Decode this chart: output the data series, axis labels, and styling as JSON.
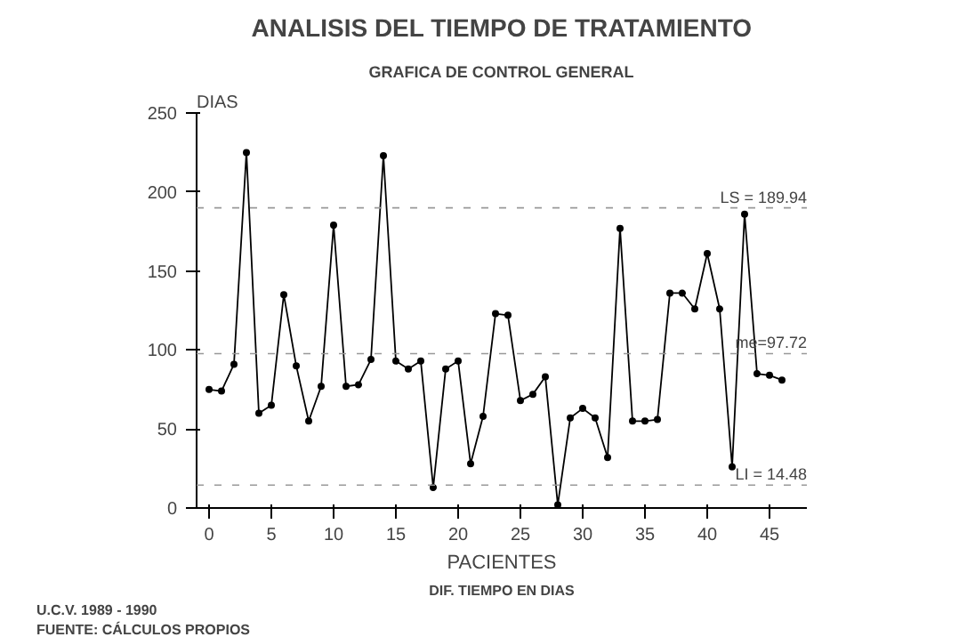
{
  "chart_data": {
    "type": "line",
    "title": "ANALISIS DEL TIEMPO DE TRATAMIENTO",
    "subtitle": "GRAFICA DE CONTROL GENERAL",
    "xlabel": "PACIENTES",
    "ylabel": "DIAS",
    "annotations": [
      "DIF. TIEMPO EN DIAS",
      "U.C.V. 1989 - 1990",
      "FUENTE: CÁLCULOS PROPIOS"
    ],
    "x": [
      0,
      1,
      2,
      3,
      4,
      5,
      6,
      7,
      8,
      9,
      10,
      11,
      12,
      13,
      14,
      15,
      16,
      17,
      18,
      19,
      20,
      21,
      22,
      23,
      24,
      25,
      26,
      27,
      28,
      29,
      30,
      31,
      32,
      33,
      34,
      35,
      36,
      37,
      38,
      39,
      40,
      41,
      42,
      43,
      44,
      45,
      46
    ],
    "series": [
      {
        "color": "#000000",
        "values": [
          75,
          74,
          91,
          225,
          60,
          65,
          135,
          90,
          55,
          77,
          179,
          77,
          78,
          94,
          223,
          93,
          88,
          93,
          13,
          88,
          93,
          28,
          58,
          123,
          122,
          68,
          72,
          83,
          2,
          57,
          63,
          57,
          32,
          177,
          55,
          55,
          56,
          136,
          136,
          126,
          161,
          126,
          26,
          186,
          85,
          84,
          81
        ]
      }
    ],
    "xlim": [
      -1,
      48
    ],
    "ylim": [
      0,
      250
    ],
    "xticks": [
      0,
      5,
      10,
      15,
      20,
      25,
      30,
      35,
      40,
      45
    ],
    "yticks": [
      0,
      50,
      100,
      150,
      200,
      250
    ],
    "ref_lines": [
      {
        "axis": "y",
        "value": 189.94,
        "label": "LS = 189.94",
        "line_style": "dashed"
      },
      {
        "axis": "y",
        "value": 97.72,
        "label": "me=97.72",
        "line_style": "dashed"
      },
      {
        "axis": "y",
        "value": 14.48,
        "label": "LI = 14.48",
        "line_style": "dashed"
      }
    ],
    "marker": "circle",
    "line_style": "solid",
    "grid": false
  }
}
